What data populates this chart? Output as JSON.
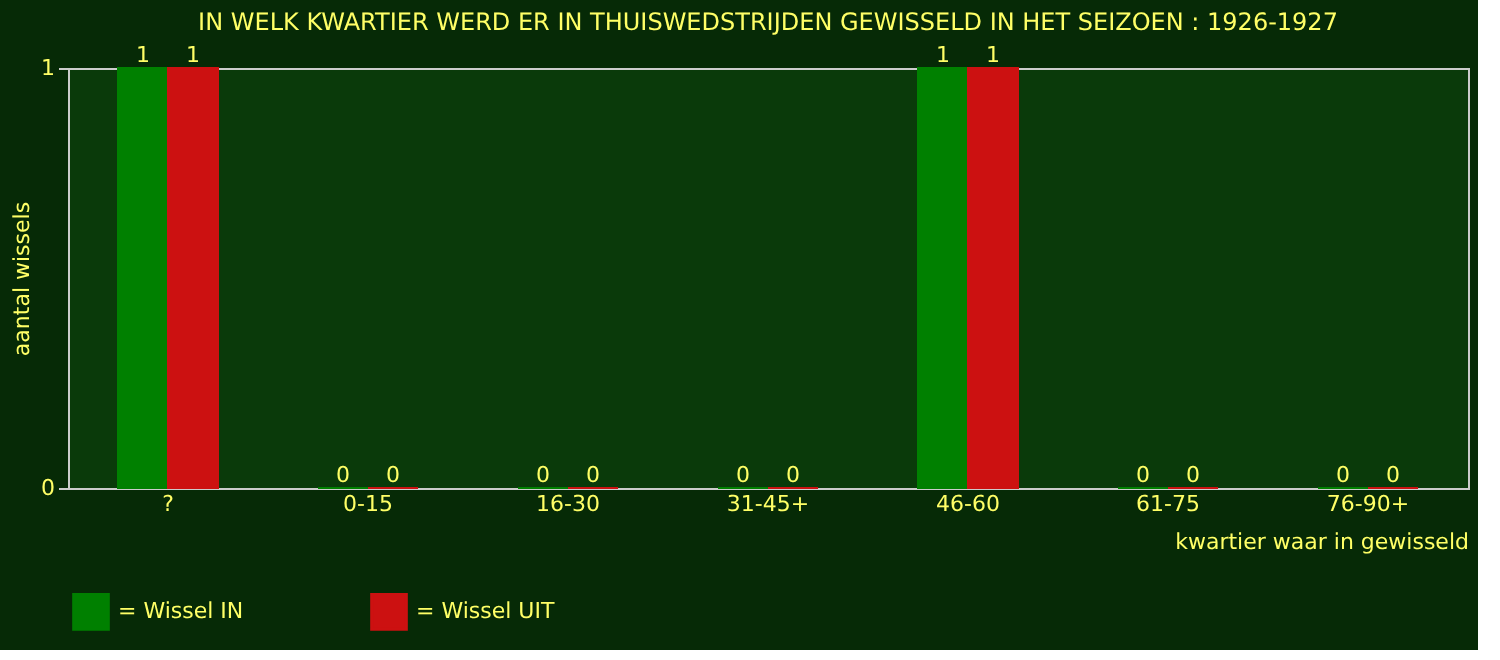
{
  "chart_data": {
    "type": "bar",
    "title": "IN WELK KWARTIER WERD ER IN THUISWEDSTRIJDEN GEWISSELD IN HET SEIZOEN : 1926-1927",
    "xlabel": "kwartier waar in gewisseld",
    "ylabel": "aantal wissels",
    "categories": [
      "?",
      "0-15",
      "16-30",
      "31-45+",
      "46-60",
      "61-75",
      "76-90+"
    ],
    "series": [
      {
        "name": "= Wissel IN",
        "color": "#008000",
        "values": [
          1,
          0,
          0,
          0,
          1,
          0,
          0
        ]
      },
      {
        "name": "= Wissel UIT",
        "color": "#cc1111",
        "values": [
          1,
          0,
          0,
          0,
          1,
          0,
          0
        ]
      }
    ],
    "ylim": [
      0,
      1
    ],
    "yticks": [
      0,
      1
    ],
    "data_labels": true,
    "legend": "bottom",
    "grid": false
  }
}
